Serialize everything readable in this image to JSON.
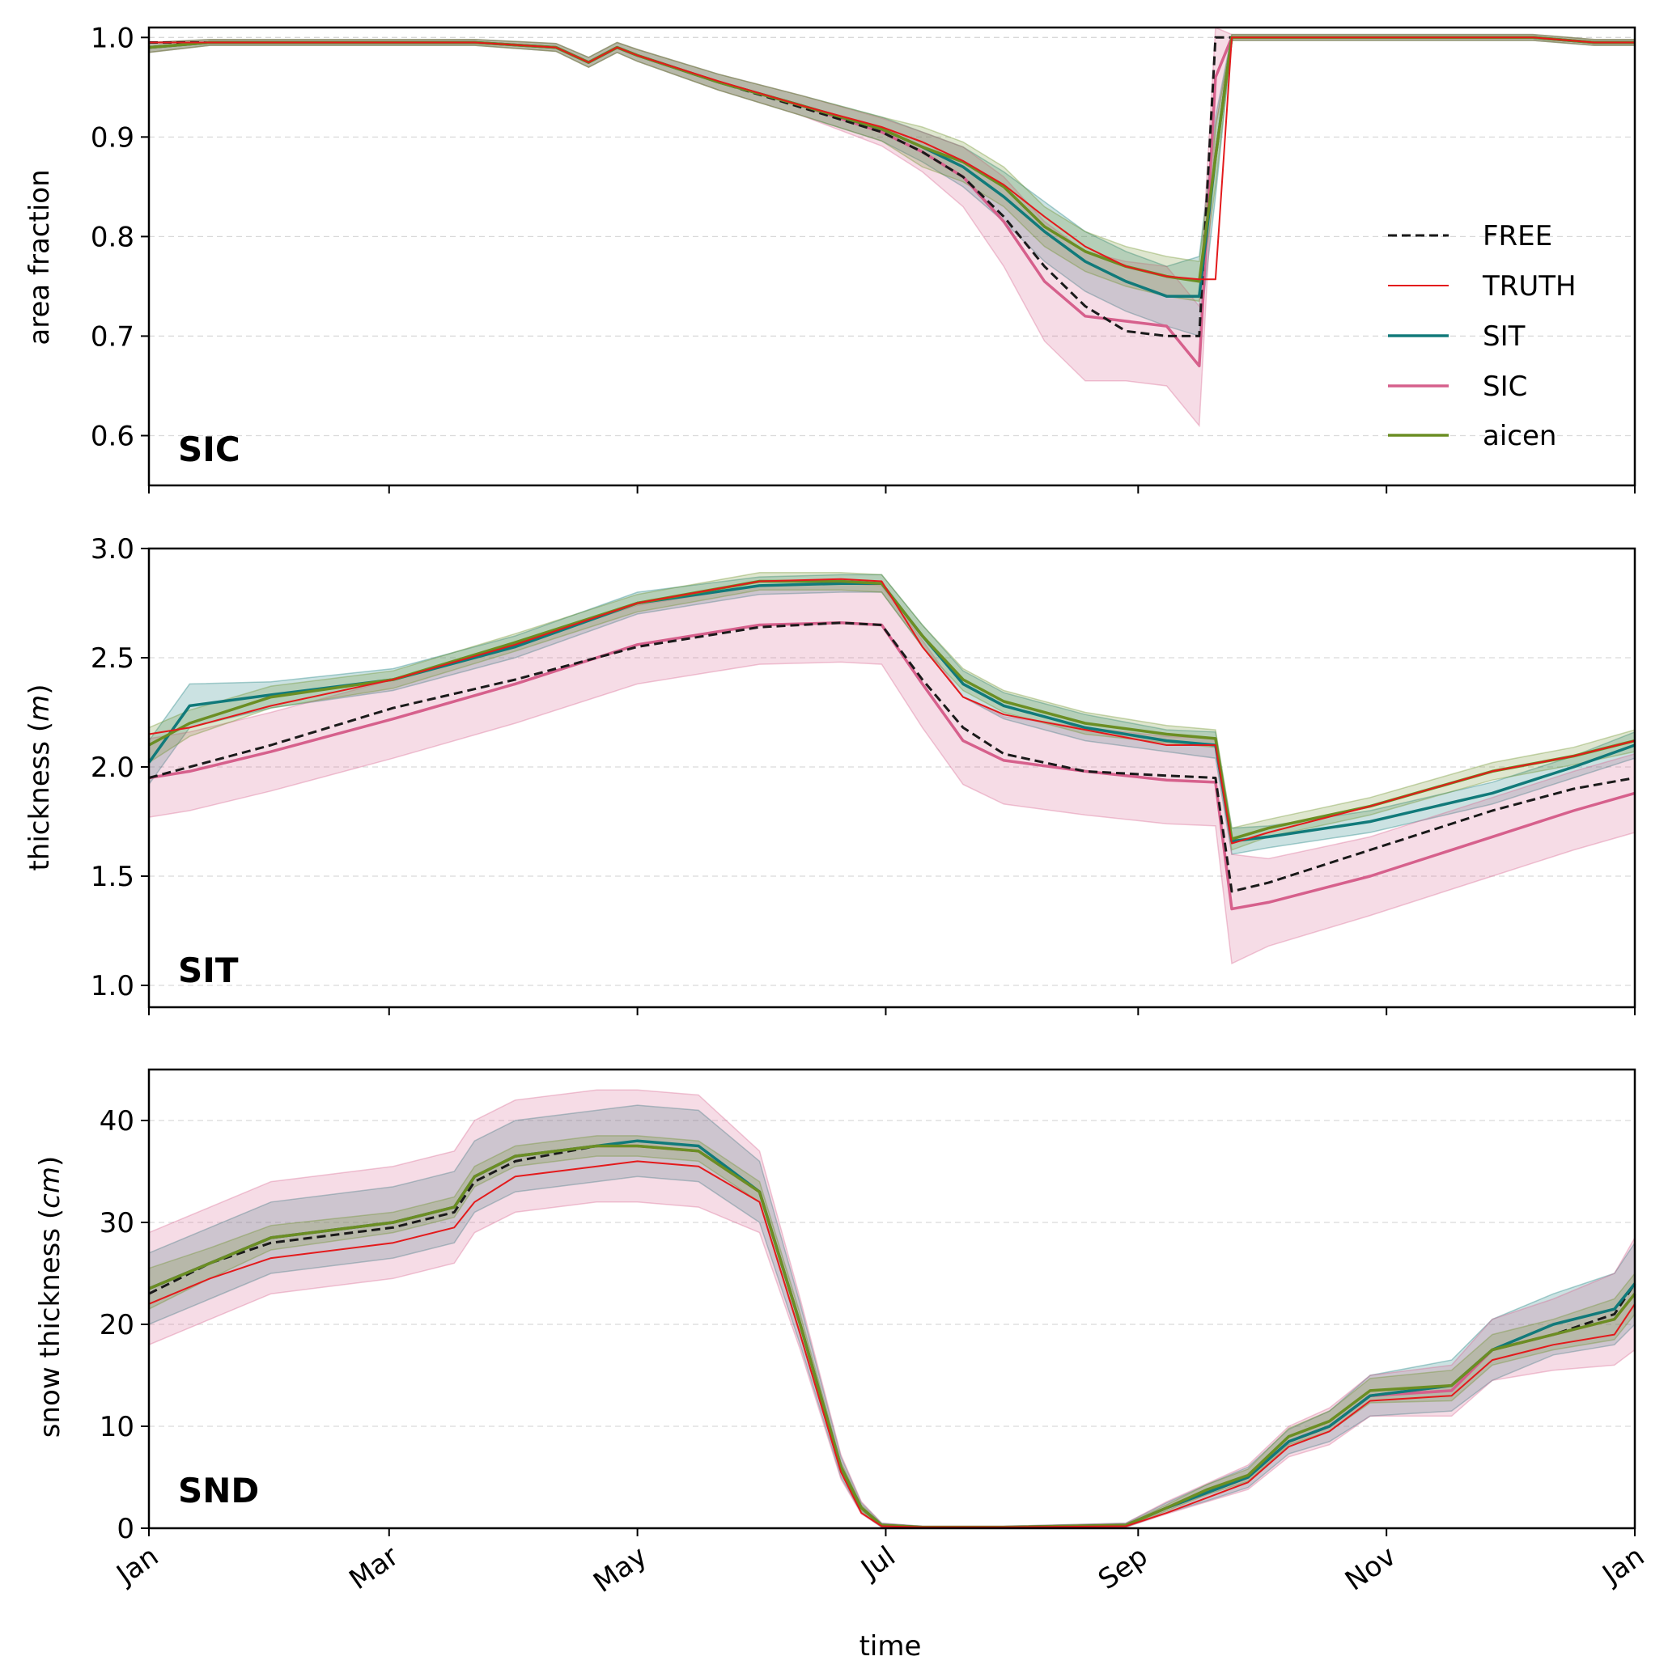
{
  "figure": {
    "xlabel": "time",
    "month_ticks": [
      "Jan",
      "Mar",
      "May",
      "Jul",
      "Sep",
      "Nov",
      "Jan"
    ],
    "legend": [
      "FREE",
      "TRUTH",
      "SIT",
      "SIC",
      "aicen"
    ]
  },
  "colors": {
    "FREE": "#1a1a1a",
    "TRUTH": "#e31a1c",
    "SIT": "#117a7a",
    "SIC": "#d6608c",
    "aicen": "#6b8e23"
  },
  "chart_data": [
    {
      "type": "line",
      "panel_label": "SIC",
      "ylabel": "area fraction",
      "xlim": [
        0,
        365
      ],
      "ylim": [
        0.55,
        1.01
      ],
      "yticks": [
        0.6,
        0.7,
        0.8,
        0.9,
        1.0
      ],
      "ytick_labels": [
        "0.6",
        "0.7",
        "0.8",
        "0.9",
        "1.0"
      ],
      "grid": "horizontal dashed",
      "legend_position": "right",
      "x": [
        0,
        15,
        30,
        60,
        80,
        100,
        108,
        115,
        120,
        140,
        160,
        180,
        190,
        200,
        210,
        220,
        230,
        240,
        250,
        258,
        262,
        266,
        270,
        290,
        320,
        340,
        355,
        365
      ],
      "series": [
        {
          "name": "FREE",
          "values": [
            0.995,
            0.995,
            0.995,
            0.995,
            0.995,
            0.99,
            0.975,
            0.99,
            0.982,
            0.955,
            0.93,
            0.905,
            0.885,
            0.86,
            0.82,
            0.77,
            0.73,
            0.705,
            0.7,
            0.7,
            1.0,
            1.0,
            1.0,
            1.0,
            1.0,
            1.0,
            0.995,
            0.995
          ]
        },
        {
          "name": "TRUTH",
          "values": [
            0.995,
            0.995,
            0.995,
            0.995,
            0.995,
            0.99,
            0.975,
            0.99,
            0.982,
            0.956,
            0.932,
            0.91,
            0.895,
            0.876,
            0.852,
            0.82,
            0.79,
            0.77,
            0.76,
            0.757,
            0.757,
            1.0,
            1.0,
            1.0,
            1.0,
            1.0,
            0.995,
            0.995
          ]
        },
        {
          "name": "SIT",
          "values": [
            0.99,
            0.995,
            0.995,
            0.995,
            0.995,
            0.99,
            0.975,
            0.99,
            0.982,
            0.955,
            0.932,
            0.908,
            0.89,
            0.87,
            0.84,
            0.805,
            0.775,
            0.755,
            0.74,
            0.74,
            0.88,
            1.0,
            1.0,
            1.0,
            1.0,
            1.0,
            0.995,
            0.995
          ]
        },
        {
          "name": "SIC",
          "values": [
            0.99,
            0.995,
            0.995,
            0.995,
            0.995,
            0.99,
            0.975,
            0.99,
            0.982,
            0.955,
            0.932,
            0.905,
            0.885,
            0.86,
            0.815,
            0.755,
            0.72,
            0.715,
            0.71,
            0.67,
            0.96,
            1.0,
            1.0,
            1.0,
            1.0,
            1.0,
            0.995,
            0.995
          ]
        },
        {
          "name": "aicen",
          "values": [
            0.99,
            0.995,
            0.995,
            0.995,
            0.995,
            0.99,
            0.975,
            0.99,
            0.982,
            0.955,
            0.932,
            0.908,
            0.89,
            0.875,
            0.85,
            0.81,
            0.785,
            0.77,
            0.76,
            0.755,
            0.88,
            1.0,
            1.0,
            1.0,
            1.0,
            1.0,
            0.995,
            0.995
          ]
        }
      ],
      "bands": [
        {
          "series": "SIT",
          "spread": [
            0.005,
            0.003,
            0.003,
            0.003,
            0.003,
            0.004,
            0.005,
            0.005,
            0.006,
            0.008,
            0.01,
            0.012,
            0.015,
            0.02,
            0.025,
            0.03,
            0.03,
            0.03,
            0.03,
            0.04,
            0.04,
            0.003,
            0.003,
            0.003,
            0.003,
            0.003,
            0.003,
            0.003
          ]
        },
        {
          "series": "SIC",
          "spread": [
            0.005,
            0.003,
            0.003,
            0.003,
            0.003,
            0.004,
            0.005,
            0.005,
            0.006,
            0.008,
            0.01,
            0.014,
            0.02,
            0.03,
            0.045,
            0.06,
            0.065,
            0.06,
            0.06,
            0.06,
            0.05,
            0.003,
            0.003,
            0.003,
            0.003,
            0.003,
            0.003,
            0.003
          ]
        },
        {
          "series": "aicen",
          "spread": [
            0.005,
            0.003,
            0.003,
            0.003,
            0.003,
            0.004,
            0.005,
            0.005,
            0.006,
            0.008,
            0.01,
            0.012,
            0.02,
            0.02,
            0.02,
            0.02,
            0.02,
            0.02,
            0.02,
            0.02,
            0.03,
            0.003,
            0.003,
            0.003,
            0.003,
            0.003,
            0.003,
            0.003
          ]
        }
      ]
    },
    {
      "type": "line",
      "panel_label": "SIT",
      "ylabel": "thickness (m)",
      "xlim": [
        0,
        365
      ],
      "ylim": [
        0.9,
        3.0
      ],
      "yticks": [
        1.0,
        1.5,
        2.0,
        2.5,
        3.0
      ],
      "ytick_labels": [
        "1.0",
        "1.5",
        "2.0",
        "2.5",
        "3.0"
      ],
      "grid": "horizontal dashed",
      "x": [
        0,
        10,
        30,
        60,
        90,
        120,
        150,
        170,
        180,
        190,
        200,
        210,
        230,
        250,
        262,
        266,
        275,
        300,
        330,
        350,
        365
      ],
      "series": [
        {
          "name": "FREE",
          "values": [
            1.95,
            2.0,
            2.1,
            2.27,
            2.4,
            2.55,
            2.64,
            2.66,
            2.65,
            2.4,
            2.18,
            2.06,
            1.98,
            1.96,
            1.95,
            1.43,
            1.47,
            1.62,
            1.8,
            1.9,
            1.95
          ]
        },
        {
          "name": "TRUTH",
          "values": [
            2.15,
            2.18,
            2.28,
            2.4,
            2.56,
            2.75,
            2.85,
            2.86,
            2.85,
            2.55,
            2.32,
            2.24,
            2.17,
            2.1,
            2.1,
            1.65,
            1.7,
            1.82,
            1.98,
            2.05,
            2.12
          ]
        },
        {
          "name": "SIT",
          "values": [
            2.02,
            2.28,
            2.33,
            2.4,
            2.55,
            2.75,
            2.83,
            2.84,
            2.84,
            2.6,
            2.38,
            2.28,
            2.18,
            2.12,
            2.1,
            1.66,
            1.68,
            1.75,
            1.88,
            2.0,
            2.1
          ]
        },
        {
          "name": "SIC",
          "values": [
            1.95,
            1.98,
            2.07,
            2.22,
            2.38,
            2.56,
            2.65,
            2.66,
            2.65,
            2.38,
            2.12,
            2.03,
            1.98,
            1.94,
            1.93,
            1.35,
            1.38,
            1.5,
            1.68,
            1.8,
            1.88
          ]
        },
        {
          "name": "aicen",
          "values": [
            2.1,
            2.2,
            2.32,
            2.4,
            2.57,
            2.75,
            2.85,
            2.85,
            2.84,
            2.6,
            2.4,
            2.3,
            2.2,
            2.15,
            2.13,
            1.67,
            1.72,
            1.82,
            1.98,
            2.05,
            2.12
          ]
        }
      ],
      "bands": [
        {
          "series": "SIT",
          "spread": [
            0.1,
            0.1,
            0.06,
            0.05,
            0.05,
            0.05,
            0.04,
            0.04,
            0.04,
            0.05,
            0.06,
            0.06,
            0.06,
            0.05,
            0.06,
            0.06,
            0.05,
            0.05,
            0.05,
            0.05,
            0.06
          ]
        },
        {
          "series": "SIC",
          "spread": [
            0.18,
            0.18,
            0.18,
            0.18,
            0.18,
            0.18,
            0.18,
            0.18,
            0.18,
            0.2,
            0.2,
            0.2,
            0.2,
            0.2,
            0.2,
            0.25,
            0.2,
            0.18,
            0.18,
            0.18,
            0.18
          ]
        },
        {
          "series": "aicen",
          "spread": [
            0.08,
            0.06,
            0.05,
            0.04,
            0.04,
            0.04,
            0.04,
            0.04,
            0.04,
            0.05,
            0.05,
            0.05,
            0.05,
            0.04,
            0.04,
            0.05,
            0.04,
            0.04,
            0.04,
            0.04,
            0.05
          ]
        }
      ]
    },
    {
      "type": "line",
      "panel_label": "SND",
      "ylabel": "snow thickness (cm)",
      "xlim": [
        0,
        365
      ],
      "ylim": [
        0,
        45
      ],
      "yticks": [
        0,
        10,
        20,
        30,
        40
      ],
      "ytick_labels": [
        "0",
        "10",
        "20",
        "30",
        "40"
      ],
      "grid": "horizontal dashed",
      "x": [
        0,
        15,
        30,
        60,
        75,
        80,
        90,
        110,
        120,
        135,
        150,
        160,
        170,
        175,
        180,
        190,
        210,
        240,
        250,
        260,
        270,
        280,
        290,
        300,
        320,
        330,
        345,
        360,
        365
      ],
      "series": [
        {
          "name": "FREE",
          "values": [
            23,
            26,
            28,
            29.5,
            31,
            34,
            36,
            37.5,
            37.5,
            37,
            33,
            20,
            6,
            2,
            0.3,
            0.1,
            0.1,
            0.3,
            2,
            3.5,
            5,
            8.5,
            10,
            13,
            14,
            17.5,
            19,
            21,
            24
          ]
        },
        {
          "name": "TRUTH",
          "values": [
            22,
            24.5,
            26.5,
            28,
            29.5,
            32,
            34.5,
            35.5,
            36,
            35.5,
            32,
            19,
            5.5,
            1.5,
            0.2,
            0.1,
            0.1,
            0.2,
            1.5,
            3,
            4.5,
            8,
            9.5,
            12.5,
            13,
            16.5,
            18,
            19,
            22
          ]
        },
        {
          "name": "SIT",
          "values": [
            23.5,
            26,
            28.5,
            30,
            31.5,
            34.5,
            36.5,
            37.5,
            38,
            37.5,
            33,
            20,
            6,
            2,
            0.3,
            0.1,
            0.1,
            0.3,
            2,
            3.5,
            5,
            8.5,
            10,
            13,
            14,
            17.5,
            20,
            21.5,
            24
          ]
        },
        {
          "name": "SIC",
          "values": [
            23.5,
            26,
            28.5,
            30,
            31.5,
            34.5,
            36.5,
            37.5,
            37.5,
            37,
            33,
            20,
            6,
            2,
            0.3,
            0.1,
            0.1,
            0.3,
            2,
            3.5,
            5,
            8.5,
            10,
            13,
            13.5,
            17.5,
            19,
            20.5,
            23
          ]
        },
        {
          "name": "aicen",
          "values": [
            23.5,
            26,
            28.5,
            30,
            31.5,
            34.5,
            36.5,
            37.5,
            37.5,
            37,
            33,
            20,
            6,
            2,
            0.3,
            0.1,
            0.1,
            0.3,
            2,
            3.8,
            5.2,
            9,
            10.5,
            13.5,
            14,
            17.5,
            19,
            20.5,
            23
          ]
        }
      ],
      "bands": [
        {
          "series": "SIT",
          "spread": [
            3.5,
            3.5,
            3.5,
            3.5,
            3.5,
            3.5,
            3.5,
            3.5,
            3.5,
            3.5,
            3,
            2,
            1,
            0.5,
            0.2,
            0.1,
            0.1,
            0.2,
            0.5,
            0.8,
            1,
            1.2,
            1.5,
            2,
            2.5,
            3,
            3,
            3.5,
            4
          ]
        },
        {
          "series": "SIC",
          "spread": [
            5.5,
            5.5,
            5.5,
            5.5,
            5.5,
            5.5,
            5.5,
            5.5,
            5.5,
            5.5,
            4,
            2.5,
            1.2,
            0.6,
            0.2,
            0.1,
            0.1,
            0.2,
            0.6,
            0.9,
            1.2,
            1.5,
            1.8,
            2,
            2.5,
            3,
            3.5,
            4.5,
            5.5
          ]
        },
        {
          "series": "aicen",
          "spread": [
            2,
            1.5,
            1.2,
            1,
            1,
            1,
            1,
            1,
            1,
            1,
            1,
            1,
            0.5,
            0.3,
            0.1,
            0.1,
            0.1,
            0.1,
            0.3,
            0.5,
            0.6,
            0.8,
            1,
            1.2,
            1.5,
            1.5,
            1.5,
            2,
            2
          ]
        }
      ]
    }
  ]
}
